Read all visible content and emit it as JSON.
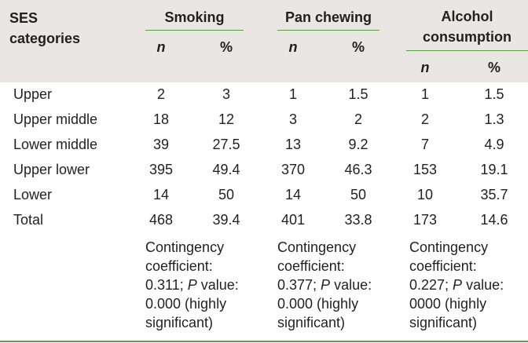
{
  "header": {
    "ses_line1": "SES",
    "ses_line2": "categories",
    "groups": [
      {
        "label_line1": "Smoking",
        "label_line2": ""
      },
      {
        "label_line1": "Pan chewing",
        "label_line2": ""
      },
      {
        "label_line1": "Alcohol",
        "label_line2": "consumption"
      }
    ],
    "n_label": "n",
    "pct_label": "%"
  },
  "rows": [
    {
      "category": "Upper",
      "values": [
        "2",
        "3",
        "1",
        "1.5",
        "1",
        "1.5"
      ]
    },
    {
      "category": "Upper middle",
      "values": [
        "18",
        "12",
        "3",
        "2",
        "2",
        "1.3"
      ]
    },
    {
      "category": "Lower middle",
      "values": [
        "39",
        "27.5",
        "13",
        "9.2",
        "7",
        "4.9"
      ]
    },
    {
      "category": "Upper lower",
      "values": [
        "395",
        "49.4",
        "370",
        "46.3",
        "153",
        "19.1"
      ]
    },
    {
      "category": "Lower",
      "values": [
        "14",
        "50",
        "14",
        "50",
        "10",
        "35.7"
      ]
    },
    {
      "category": "Total",
      "values": [
        "468",
        "39.4",
        "401",
        "33.8",
        "173",
        "14.6"
      ]
    }
  ],
  "notes": [
    {
      "l1": "Contingency",
      "l2": "coefficient:",
      "l3a": "0.311; ",
      "p": "P",
      "l3b": " value:",
      "l4": "0.000 (highly",
      "l5": "significant)"
    },
    {
      "l1": "Contingency",
      "l2": "coefficient:",
      "l3a": "0.377; ",
      "p": "P",
      "l3b": " value:",
      "l4": "0.000 (highly",
      "l5": "significant)"
    },
    {
      "l1": "Contingency",
      "l2": "coefficient:",
      "l3a": "0.227; ",
      "p": "P",
      "l3b": " value:",
      "l4": "0000 (highly",
      "l5": "significant)"
    }
  ]
}
